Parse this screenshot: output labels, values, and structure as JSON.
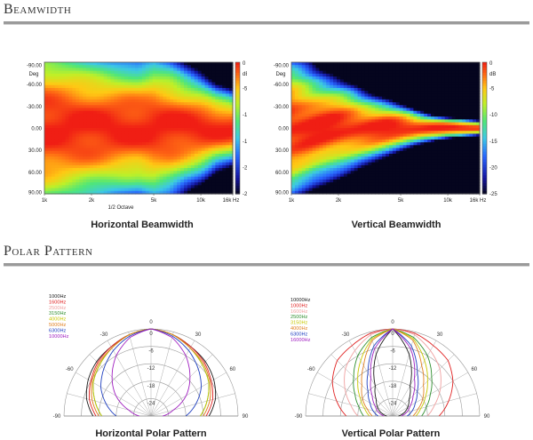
{
  "sections": {
    "beamwidth_title": "Beamwidth",
    "polar_title": "Polar Pattern"
  },
  "captions": {
    "horizontal_beamwidth": "Horizontal Beamwidth",
    "vertical_beamwidth": "Vertical Beamwidth",
    "horizontal_polar": "Horizontal Polar Pattern",
    "vertical_polar": "Vertical Polar Pattern"
  },
  "chart_data": [
    {
      "type": "heatmap",
      "id": "horizontal-beamwidth",
      "title": "Horizontal Beamwidth",
      "xlabel": "1/2 Octave",
      "ylabel": "Deg",
      "x_ticks": [
        "1k",
        "2k",
        "5k",
        "10k",
        "16k Hz"
      ],
      "y_ticks": [
        "-90.00",
        "-60.00",
        "-30.00",
        "0.00",
        "30.00",
        "60.00",
        "90.00"
      ],
      "colorbar_unit": "dB",
      "colorbar_ticks": [
        "0",
        "-5",
        "-10",
        "-15",
        "-20",
        "-25"
      ],
      "zlim": [
        -25,
        0
      ],
      "x_freq": [
        1000,
        1400,
        2000,
        2800,
        4000,
        5000,
        6300,
        8000,
        10000,
        12500,
        16000
      ],
      "angles": [
        -90,
        -75,
        -60,
        -45,
        -30,
        -15,
        0,
        15,
        30,
        45,
        60,
        75,
        90
      ],
      "half_width_deg_6db": [
        70,
        64,
        58,
        54,
        52,
        56,
        52,
        44,
        38,
        30,
        26
      ]
    },
    {
      "type": "heatmap",
      "id": "vertical-beamwidth",
      "title": "Vertical Beamwidth",
      "xlabel": "",
      "ylabel": "Deg",
      "x_ticks": [
        "1k",
        "2k",
        "5k",
        "10k",
        "16k Hz"
      ],
      "y_ticks": [
        "-90.00",
        "-60.00",
        "-30.00",
        "0.00",
        "30.00",
        "60.00",
        "90.00"
      ],
      "colorbar_unit": "dB",
      "colorbar_ticks": [
        "0",
        "-5",
        "-10",
        "-15",
        "-20",
        "-25"
      ],
      "zlim": [
        -25,
        0
      ],
      "x_freq": [
        1000,
        1400,
        2000,
        2800,
        4000,
        5000,
        6300,
        8000,
        10000,
        12500,
        16000
      ],
      "angles": [
        -90,
        -75,
        -60,
        -45,
        -30,
        -15,
        0,
        15,
        30,
        45,
        60,
        75,
        90
      ],
      "half_width_deg_6db": [
        52,
        42,
        34,
        26,
        20,
        16,
        12,
        9,
        7,
        6,
        5
      ]
    },
    {
      "type": "line",
      "id": "horizontal-polar",
      "title": "Horizontal Polar Pattern",
      "projection": "polar-half",
      "radial_ticks": [
        "0",
        "-6",
        "-12",
        "-18",
        "-24"
      ],
      "angle_ticks": [
        "-90",
        "-60",
        "-30",
        "0",
        "30",
        "60",
        "90"
      ],
      "rlim": [
        -30,
        0
      ],
      "angles_deg": [
        -90,
        -75,
        -60,
        -45,
        -30,
        -15,
        0,
        15,
        30,
        45,
        60,
        75,
        90
      ],
      "series": [
        {
          "name": "1000Hz",
          "color": "#1a1a1a",
          "values": [
            -10,
            -7,
            -5,
            -3.5,
            -2.5,
            -1,
            0,
            -1,
            -2.5,
            -3.5,
            -5,
            -7,
            -10
          ]
        },
        {
          "name": "1600Hz",
          "color": "#e02020",
          "values": [
            -11,
            -8,
            -6,
            -4,
            -2.5,
            -1,
            0,
            -1,
            -2.5,
            -4,
            -6,
            -8,
            -11
          ]
        },
        {
          "name": "2500Hz",
          "color": "#f0a0a0",
          "values": [
            -12,
            -9,
            -6.5,
            -4.5,
            -3,
            -1,
            0,
            -1,
            -3,
            -4.5,
            -6.5,
            -9,
            -12
          ]
        },
        {
          "name": "3150Hz",
          "color": "#2f8f2f",
          "values": [
            -13,
            -10,
            -7,
            -5,
            -3,
            -1,
            0,
            -1,
            -3,
            -5,
            -7,
            -10,
            -13
          ]
        },
        {
          "name": "4000Hz",
          "color": "#c8c800",
          "values": [
            -13,
            -10,
            -7,
            -5,
            -3,
            -1,
            0,
            -1,
            -3,
            -5,
            -7,
            -10,
            -13
          ]
        },
        {
          "name": "5000Hz",
          "color": "#e08020",
          "values": [
            -12,
            -9,
            -6.5,
            -4.5,
            -3,
            -1,
            0,
            -1,
            -3,
            -4.5,
            -6.5,
            -9,
            -12
          ]
        },
        {
          "name": "6300Hz",
          "color": "#2040c0",
          "values": [
            -18,
            -14,
            -10,
            -7,
            -4,
            -1.5,
            0,
            -1.5,
            -4,
            -7,
            -10,
            -14,
            -18
          ]
        },
        {
          "name": "10000Hz",
          "color": "#a020c0",
          "values": [
            -26,
            -22,
            -16,
            -11,
            -6,
            -2,
            0,
            -2,
            -6,
            -11,
            -16,
            -22,
            -26
          ]
        }
      ]
    },
    {
      "type": "line",
      "id": "vertical-polar",
      "title": "Vertical Polar Pattern",
      "projection": "polar-half",
      "radial_ticks": [
        "0",
        "-6",
        "-12",
        "-18",
        "-24"
      ],
      "angle_ticks": [
        "-90",
        "-60",
        "-30",
        "0",
        "30",
        "60",
        "90"
      ],
      "rlim": [
        -30,
        0
      ],
      "angles_deg": [
        -90,
        -75,
        -60,
        -45,
        -30,
        -15,
        0,
        15,
        30,
        45,
        60,
        75,
        90
      ],
      "series": [
        {
          "name": "10000Hz",
          "color": "#1a1a1a",
          "values": [
            -28,
            -26,
            -24,
            -22,
            -18,
            -8,
            0,
            -8,
            -18,
            -22,
            -24,
            -26,
            -28
          ]
        },
        {
          "name": "1000Hz",
          "color": "#e02020",
          "values": [
            -14,
            -10,
            -6,
            -3,
            -2,
            -0.5,
            0,
            -0.5,
            -2,
            -3,
            -6,
            -10,
            -14
          ]
        },
        {
          "name": "1600Hz",
          "color": "#f0a0a0",
          "values": [
            -18,
            -15,
            -11,
            -7,
            -4,
            -1,
            0,
            -1,
            -4,
            -7,
            -11,
            -15,
            -18
          ]
        },
        {
          "name": "2500Hz",
          "color": "#2f8f2f",
          "values": [
            -20,
            -18,
            -15,
            -11,
            -6,
            -2,
            0,
            -2,
            -6,
            -11,
            -15,
            -18,
            -20
          ]
        },
        {
          "name": "3150Hz",
          "color": "#c8c800",
          "values": [
            -22,
            -20,
            -17,
            -13,
            -8,
            -2.5,
            0,
            -2.5,
            -8,
            -13,
            -17,
            -20,
            -22
          ]
        },
        {
          "name": "4000Hz",
          "color": "#e08020",
          "values": [
            -23,
            -21,
            -18,
            -15,
            -10,
            -3,
            0,
            -3,
            -10,
            -15,
            -18,
            -21,
            -23
          ]
        },
        {
          "name": "6300Hz",
          "color": "#2040c0",
          "values": [
            -25,
            -23,
            -21,
            -18,
            -13,
            -5,
            0,
            -5,
            -13,
            -18,
            -21,
            -23,
            -25
          ]
        },
        {
          "name": "16000Hz",
          "color": "#a020c0",
          "values": [
            -27,
            -25,
            -23,
            -20,
            -15,
            -6,
            0,
            -6,
            -15,
            -20,
            -23,
            -25,
            -27
          ]
        }
      ]
    }
  ]
}
